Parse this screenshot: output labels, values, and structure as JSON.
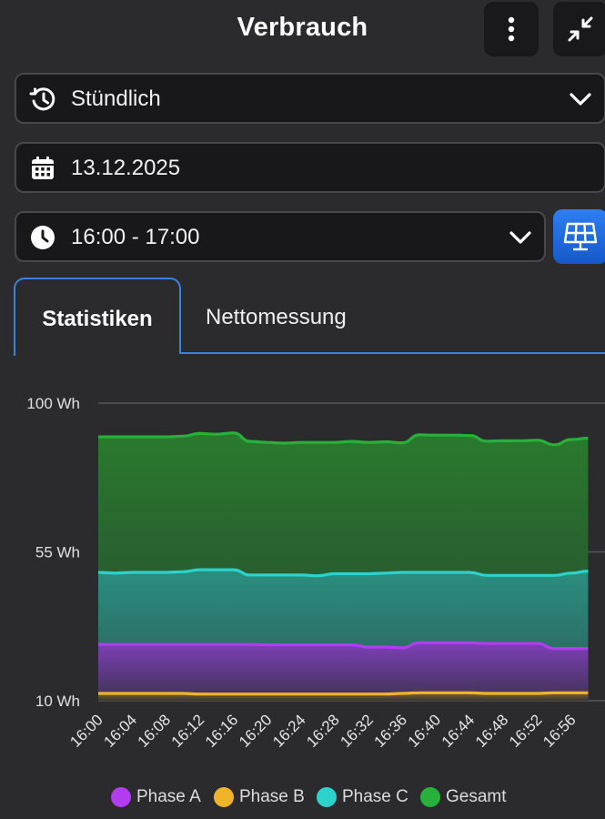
{
  "header": {
    "title": "Verbrauch",
    "menu_icon": "more-vertical-icon",
    "collapse_icon": "collapse-arrows-icon"
  },
  "interval_select": {
    "value": "Stündlich",
    "icon": "history-icon"
  },
  "date_field": {
    "value": "13.12.2025",
    "icon": "calendar-icon"
  },
  "time_select": {
    "value": "16:00 - 17:00",
    "icon": "clock-icon"
  },
  "solar_button": {
    "icon": "solar-panel-icon",
    "color": "#2a73e8"
  },
  "tabs": [
    {
      "label": "Statistiken",
      "active": true
    },
    {
      "label": "Nettomessung",
      "active": false
    }
  ],
  "chart_data": {
    "type": "area",
    "title": "",
    "xlabel": "",
    "ylabel": "",
    "y_ticks": [
      "100 Wh",
      "55 Wh",
      "10 Wh"
    ],
    "y_tick_values": [
      100,
      55,
      10
    ],
    "ylim": [
      10,
      100
    ],
    "x_ticks": [
      "16:00",
      "16:04",
      "16:08",
      "16:12",
      "16:16",
      "16:20",
      "16:24",
      "16:28",
      "16:32",
      "16:36",
      "16:40",
      "16:44",
      "16:48",
      "16:52",
      "16:56"
    ],
    "x": [
      "16:00",
      "16:02",
      "16:04",
      "16:06",
      "16:08",
      "16:10",
      "16:12",
      "16:14",
      "16:16",
      "16:18",
      "16:20",
      "16:22",
      "16:24",
      "16:26",
      "16:28",
      "16:30",
      "16:32",
      "16:34",
      "16:36",
      "16:38",
      "16:40",
      "16:42",
      "16:44",
      "16:46",
      "16:48",
      "16:50",
      "16:52",
      "16:54",
      "16:56",
      "16:58"
    ],
    "grid": true,
    "legend": "bottom",
    "series": [
      {
        "name": "Phase A",
        "color": "#b13cf0",
        "values": [
          27.0,
          27.0,
          27.0,
          27.0,
          27.0,
          27.0,
          27.0,
          27.0,
          27.0,
          27.0,
          26.9,
          26.9,
          26.9,
          26.9,
          26.9,
          26.9,
          26.2,
          26.2,
          26.0,
          27.5,
          27.5,
          27.5,
          27.5,
          27.3,
          27.3,
          27.3,
          27.3,
          25.8,
          25.8,
          25.8
        ]
      },
      {
        "name": "Phase B",
        "color": "#f0b428",
        "values": [
          12.2,
          12.2,
          12.2,
          12.2,
          12.2,
          12.2,
          12.0,
          12.0,
          12.0,
          12.0,
          12.0,
          12.0,
          12.0,
          12.0,
          12.0,
          12.0,
          12.0,
          12.0,
          12.2,
          12.4,
          12.4,
          12.4,
          12.4,
          12.2,
          12.2,
          12.2,
          12.2,
          12.4,
          12.4,
          12.4
        ]
      },
      {
        "name": "Phase C",
        "color": "#2ed2cc",
        "values": [
          48.8,
          48.6,
          48.8,
          48.8,
          48.8,
          49.0,
          49.6,
          49.6,
          49.6,
          48.0,
          48.0,
          48.0,
          48.0,
          47.8,
          48.4,
          48.4,
          48.4,
          48.6,
          48.8,
          48.8,
          48.8,
          48.8,
          48.8,
          47.9,
          47.9,
          47.9,
          47.9,
          47.9,
          48.6,
          49.2
        ]
      },
      {
        "name": "Gesamt",
        "color": "#27b03a",
        "values": [
          89.8,
          89.8,
          89.8,
          89.8,
          89.8,
          90.0,
          90.8,
          90.6,
          91.0,
          88.4,
          88.1,
          87.9,
          88.1,
          88.1,
          88.1,
          88.4,
          88.1,
          88.3,
          88.0,
          90.4,
          90.3,
          90.3,
          90.2,
          88.5,
          88.6,
          88.6,
          88.8,
          87.4,
          89.0,
          89.4
        ]
      }
    ]
  }
}
